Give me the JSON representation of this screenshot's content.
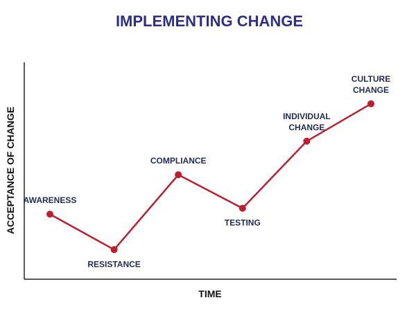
{
  "chart_data": {
    "type": "line",
    "title": "IMPLEMENTING CHANGE",
    "xlabel": "TIME",
    "ylabel": "ACCEPTANCE OF CHANGE",
    "categories": [
      "AWARENESS",
      "RESISTANCE",
      "COMPLIANCE",
      "TESTING",
      "INDIVIDUAL CHANGE",
      "CULTURE CHANGE"
    ],
    "label_lines": [
      [
        "AWARENESS"
      ],
      [
        "RESISTANCE"
      ],
      [
        "COMPLIANCE"
      ],
      [
        "TESTING"
      ],
      [
        "INDIVIDUAL",
        "CHANGE"
      ],
      [
        "CULTURE",
        "CHANGE"
      ]
    ],
    "label_positions": [
      "above",
      "below",
      "above",
      "below",
      "above",
      "above"
    ],
    "x": [
      1,
      2,
      3,
      4,
      5,
      6
    ],
    "values": [
      3.3,
      1.5,
      5.3,
      3.6,
      7.0,
      8.9
    ],
    "xlim": [
      0.6,
      6.4
    ],
    "ylim": [
      0,
      11
    ],
    "grid": false,
    "legend": "none",
    "colors": {
      "line": "#c01e2e",
      "marker": "#c01e2e",
      "title": "#2e2f8a",
      "labels": "#1f2a5a",
      "axis": "#222222"
    }
  }
}
